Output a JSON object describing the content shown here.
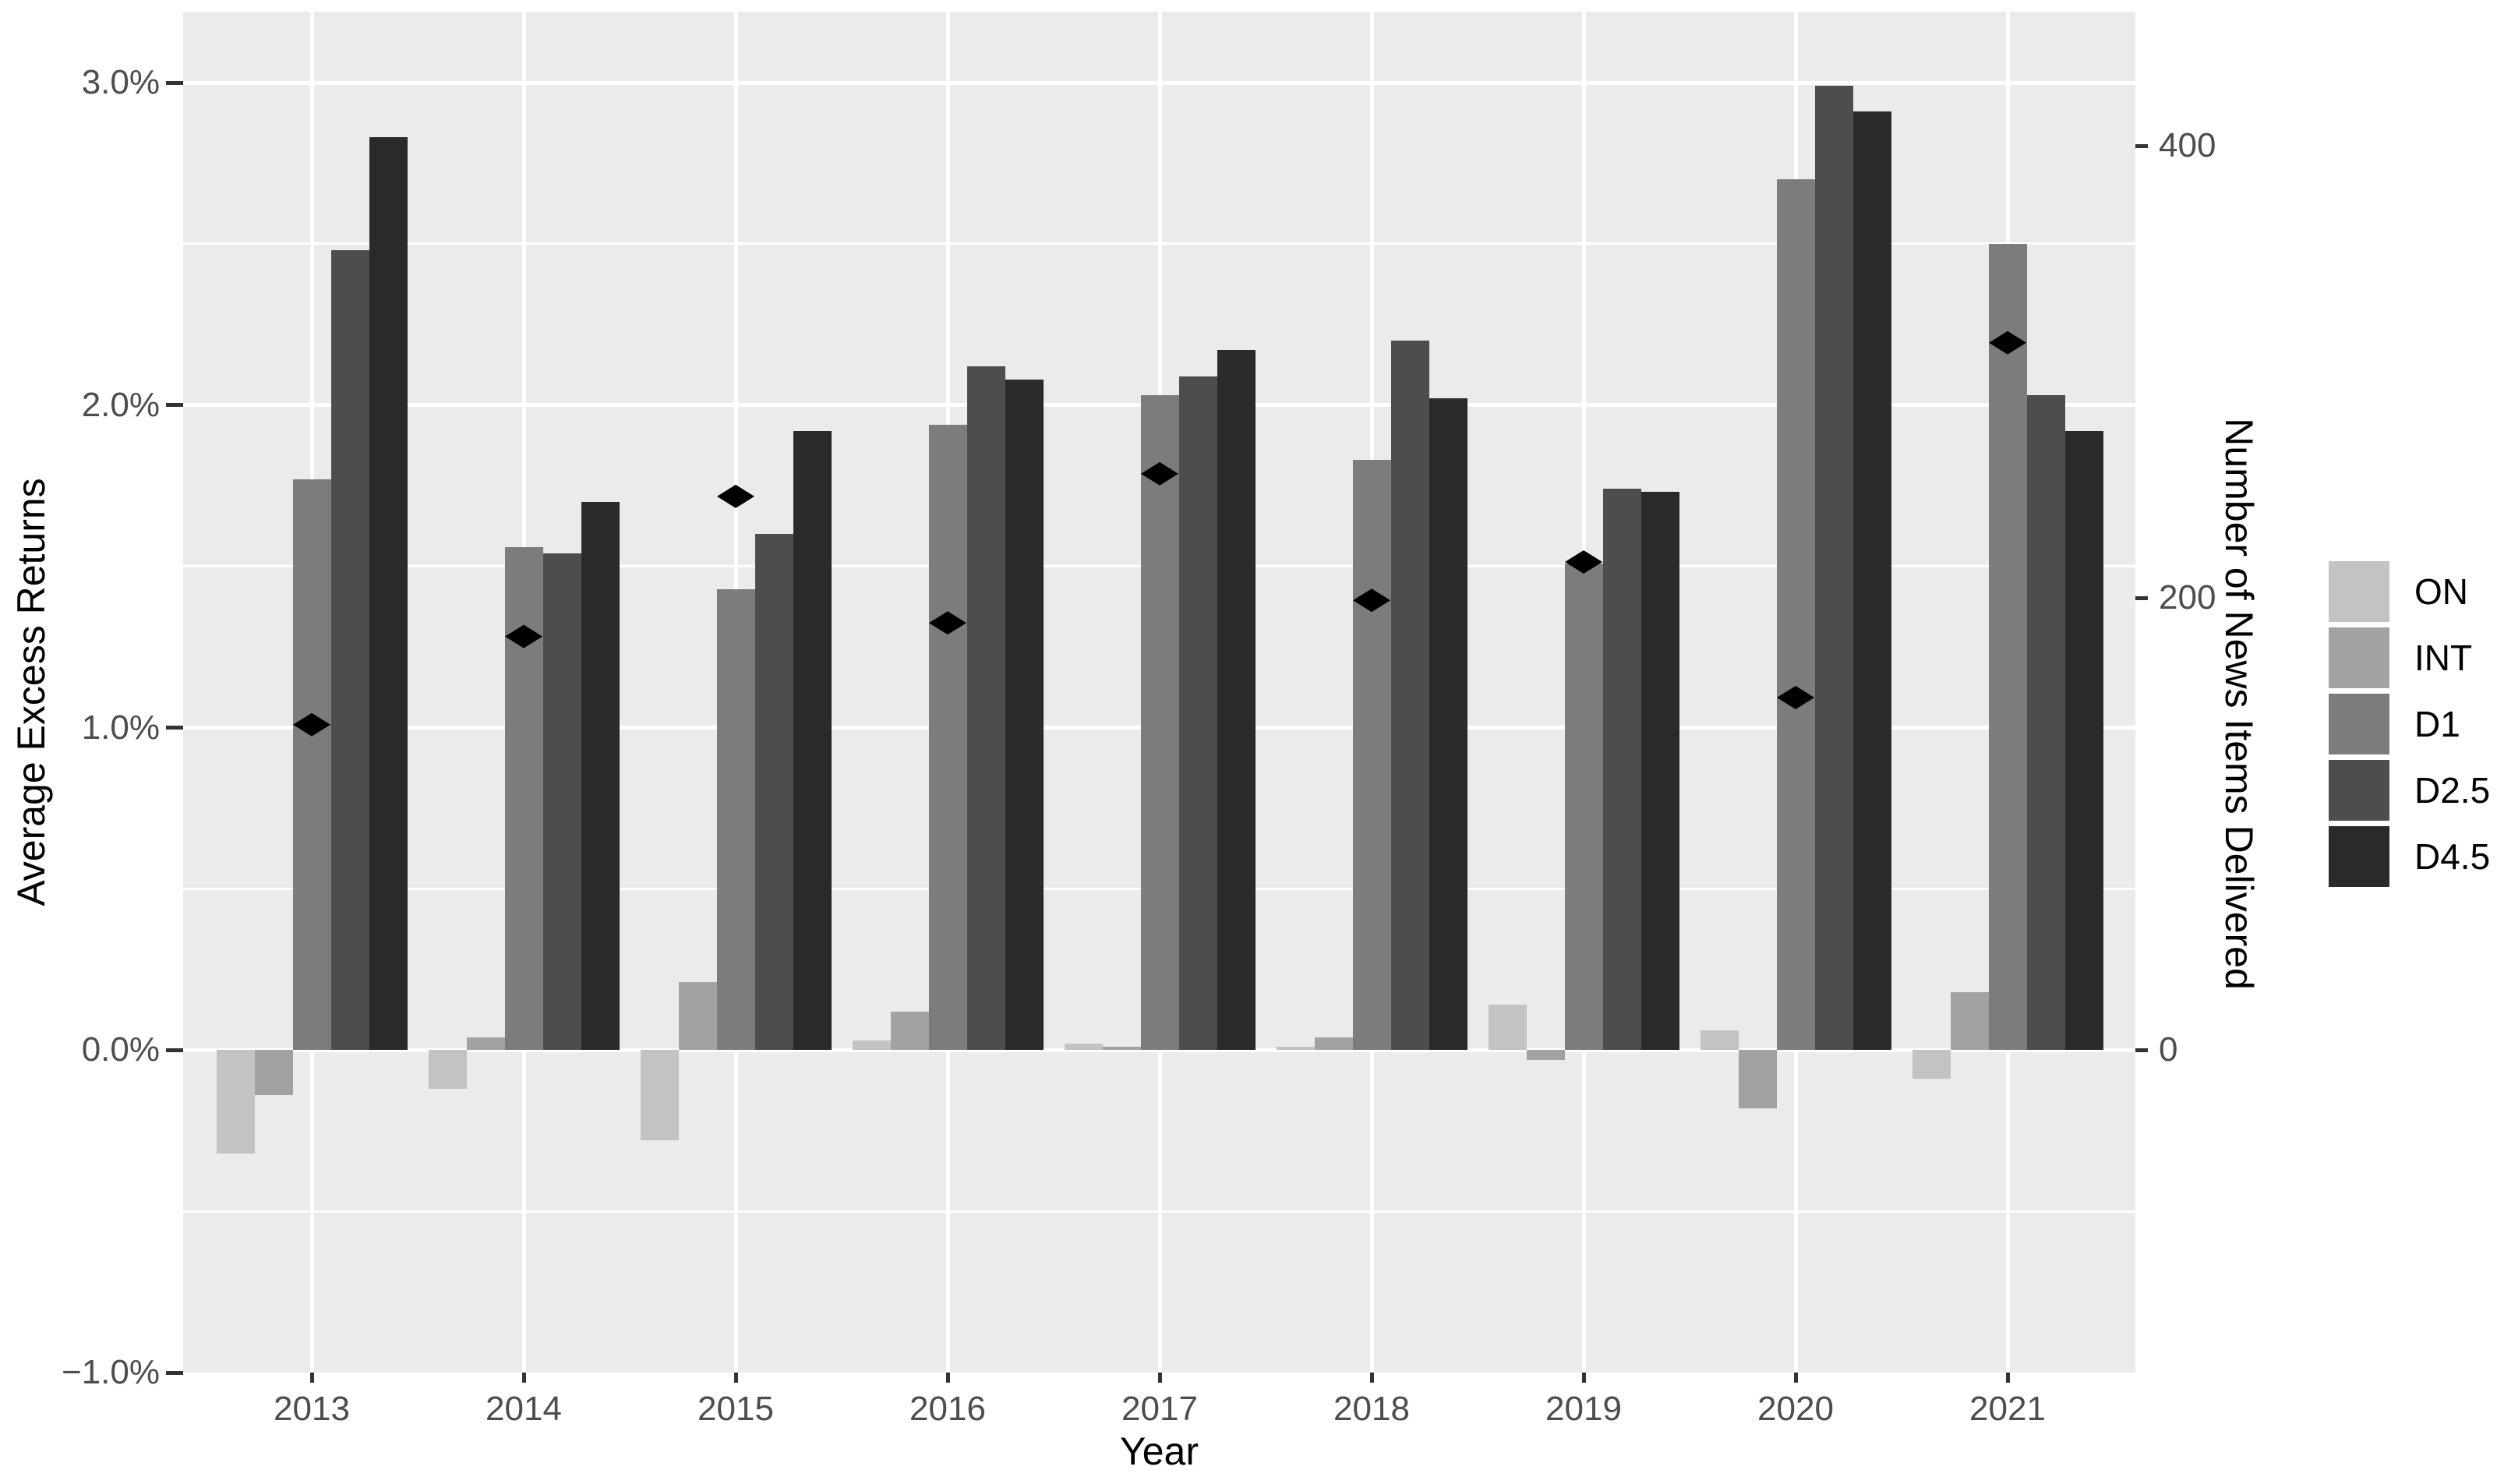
{
  "page": {
    "background": "#FFFFFF"
  },
  "chart_data": {
    "type": "bar",
    "title": "",
    "xlabel": "Year",
    "ylabel_left": "Average Excess Returns",
    "ylabel_right": "Number of News Items Delivered",
    "categories": [
      "2013",
      "2014",
      "2015",
      "2016",
      "2017",
      "2018",
      "2019",
      "2020",
      "2021"
    ],
    "series": [
      {
        "name": "ON",
        "color": "#C3C3C3",
        "values": [
          -0.32,
          -0.12,
          -0.28,
          0.03,
          0.02,
          0.01,
          0.14,
          0.06,
          -0.09
        ]
      },
      {
        "name": "INT",
        "color": "#A2A2A2",
        "values": [
          -0.14,
          0.04,
          0.21,
          0.12,
          0.01,
          0.04,
          -0.03,
          -0.18,
          0.18
        ]
      },
      {
        "name": "D1",
        "color": "#7C7C7C",
        "values": [
          1.77,
          1.56,
          1.43,
          1.94,
          2.03,
          1.83,
          1.51,
          2.7,
          2.5
        ]
      },
      {
        "name": "D2.5",
        "color": "#4D4D4D",
        "values": [
          2.48,
          1.54,
          1.6,
          2.12,
          2.09,
          2.2,
          1.74,
          2.99,
          2.03
        ]
      },
      {
        "name": "D4.5",
        "color": "#2A2A2A",
        "values": [
          2.83,
          1.7,
          1.92,
          2.08,
          2.17,
          2.02,
          1.73,
          2.91,
          1.92
        ]
      }
    ],
    "points_series": {
      "name": "Number of News Items Delivered",
      "marker": "diamond",
      "color": "#000000",
      "axis": "right",
      "values": [
        144,
        183,
        245,
        189,
        255,
        199,
        216,
        156,
        313
      ]
    },
    "axes": {
      "left": {
        "range": [
          -1.0,
          3.22
        ],
        "ticks": [
          {
            "value": 3.0,
            "label": "3.0%"
          },
          {
            "value": 2.0,
            "label": "2.0%"
          },
          {
            "value": 1.0,
            "label": "1.0%"
          },
          {
            "value": 0.0,
            "label": "0.0%"
          },
          {
            "value": -1.0,
            "label": "−1.0%"
          }
        ],
        "minor_gridlines": [
          2.5,
          1.5,
          0.5,
          -0.5
        ],
        "major_gridlines": [
          3.0,
          2.0,
          1.0,
          0.0
        ]
      },
      "right": {
        "items_per_percent": 142.7,
        "ticks": [
          {
            "value": 400,
            "label": "400"
          },
          {
            "value": 200,
            "label": "200"
          },
          {
            "value": 0,
            "label": "0"
          }
        ]
      }
    },
    "legend": {
      "position": "right",
      "entries": [
        {
          "label": "ON",
          "color": "#C3C3C3"
        },
        {
          "label": "INT",
          "color": "#A2A2A2"
        },
        {
          "label": "D1",
          "color": "#7C7C7C"
        },
        {
          "label": "D2.5",
          "color": "#4D4D4D"
        },
        {
          "label": "D4.5",
          "color": "#2A2A2A"
        }
      ]
    },
    "panel": {
      "background": "#EBEBEB",
      "grid_color": "#FFFFFF"
    }
  }
}
